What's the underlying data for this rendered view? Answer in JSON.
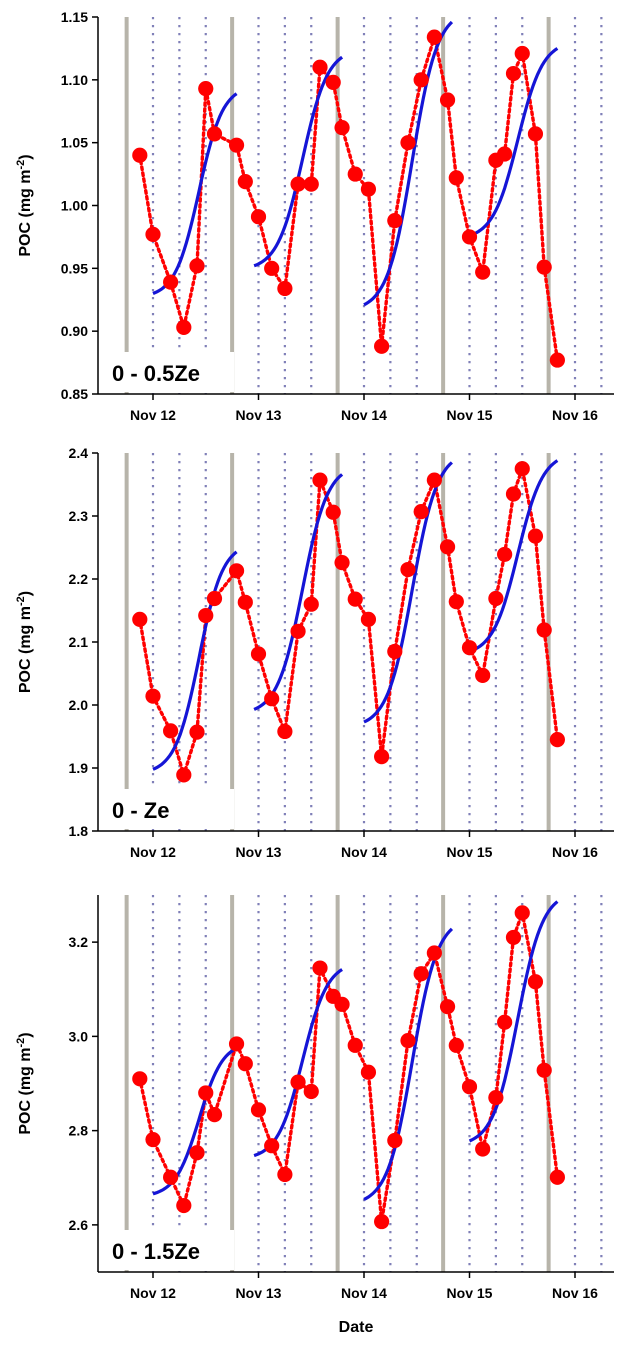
{
  "figure": {
    "xlabel": "Date",
    "x_tick_labels": [
      "Nov 12",
      "Nov 13",
      "Nov 14",
      "Nov 15",
      "Nov 16"
    ]
  },
  "chart_data": [
    {
      "type": "scatter",
      "panel_label": "0 - 0.5Ze",
      "ylabel": "POC (mg m",
      "ylabel_sup": "-2",
      "ylabel_end": ")",
      "ylim": [
        0.85,
        1.15
      ],
      "y_ticks": [
        "0.85",
        "0.90",
        "0.95",
        "1.00",
        "1.05",
        "1.10",
        "1.15"
      ],
      "xlim": [
        11.5,
        16.45
      ],
      "grid": "vertical",
      "series": [
        {
          "type": "points",
          "color": "#ff0000",
          "x": [
            11.875,
            12.0,
            12.167,
            12.292,
            12.417,
            12.5,
            12.583,
            12.792,
            12.875,
            13.0,
            13.125,
            13.25,
            13.375,
            13.5,
            13.583,
            13.708,
            13.792,
            13.917,
            14.042,
            14.167,
            14.292,
            14.417,
            14.542,
            14.667,
            14.792,
            14.875,
            15.0,
            15.125,
            15.25,
            15.333,
            15.417,
            15.5,
            15.625,
            15.708,
            15.833,
            15.917,
            16.042,
            16.167,
            16.292
          ],
          "y": [
            1.04,
            0.977,
            0.939,
            0.903,
            0.952,
            1.093,
            1.057,
            1.048,
            1.019,
            0.991,
            0.95,
            0.934,
            1.017,
            1.017,
            1.11,
            1.098,
            1.062,
            1.025,
            1.013,
            0.888,
            0.988,
            1.05,
            1.1,
            1.134,
            1.084,
            1.022,
            0.975,
            0.947,
            1.036,
            1.041,
            1.105,
            1.121,
            1.057,
            0.951,
            0.877,
            null,
            null,
            null,
            null
          ]
        },
        {
          "type": "fit",
          "color": "#1515d6",
          "segments": [
            {
              "x0": 12.0,
              "x1": 12.792,
              "y0": 0.93,
              "y1": 1.089
            },
            {
              "x0": 12.958,
              "x1": 13.792,
              "y0": 0.952,
              "y1": 1.118
            },
            {
              "x0": 14.0,
              "x1": 14.833,
              "y0": 0.921,
              "y1": 1.146
            },
            {
              "x0": 15.0,
              "x1": 15.833,
              "y0": 0.976,
              "y1": 1.125
            }
          ]
        }
      ]
    },
    {
      "type": "scatter",
      "panel_label": "0 - Ze",
      "ylabel": "POC (mg m",
      "ylabel_sup": "-2",
      "ylabel_end": ")",
      "ylim": [
        1.8,
        2.4
      ],
      "y_ticks": [
        "1.8",
        "1.9",
        "2.0",
        "2.1",
        "2.2",
        "2.3",
        "2.4"
      ],
      "xlim": [
        11.5,
        16.45
      ],
      "grid": "vertical",
      "series": [
        {
          "type": "points",
          "color": "#ff0000",
          "x": [
            11.875,
            12.0,
            12.167,
            12.292,
            12.417,
            12.5,
            12.583,
            12.792,
            12.875,
            13.0,
            13.125,
            13.25,
            13.375,
            13.5,
            13.583,
            13.708,
            13.792,
            13.917,
            14.042,
            14.167,
            14.292,
            14.417,
            14.542,
            14.667,
            14.792,
            14.875,
            15.0,
            15.125,
            15.25,
            15.333,
            15.417,
            15.5,
            15.625,
            15.708,
            15.833,
            15.917,
            16.042,
            16.167,
            16.292
          ],
          "y": [
            2.136,
            2.014,
            1.959,
            1.889,
            1.957,
            2.142,
            2.169,
            2.213,
            2.163,
            2.081,
            2.01,
            1.958,
            2.117,
            2.16,
            2.357,
            2.306,
            2.226,
            2.168,
            2.136,
            1.918,
            2.085,
            2.215,
            2.307,
            2.357,
            2.251,
            2.164,
            2.091,
            2.047,
            2.169,
            2.239,
            2.335,
            2.375,
            2.268,
            2.119,
            1.945,
            null,
            null,
            null,
            null
          ]
        },
        {
          "type": "fit",
          "color": "#1515d6",
          "segments": [
            {
              "x0": 12.0,
              "x1": 12.792,
              "y0": 1.898,
              "y1": 2.243
            },
            {
              "x0": 12.958,
              "x1": 13.792,
              "y0": 1.993,
              "y1": 2.366
            },
            {
              "x0": 14.0,
              "x1": 14.833,
              "y0": 1.973,
              "y1": 2.385
            },
            {
              "x0": 15.0,
              "x1": 15.833,
              "y0": 2.085,
              "y1": 2.388
            }
          ]
        }
      ]
    },
    {
      "type": "scatter",
      "panel_label": "0 - 1.5Ze",
      "ylabel": "POC (mg m",
      "ylabel_sup": "-2",
      "ylabel_end": ")",
      "ylim": [
        2.5,
        3.3
      ],
      "y_ticks": [
        "2.6",
        "2.8",
        "3.0",
        "3.2"
      ],
      "y_tick_values": [
        2.6,
        2.8,
        3.0,
        3.2
      ],
      "xlim": [
        11.5,
        16.45
      ],
      "grid": "vertical",
      "series": [
        {
          "type": "points",
          "color": "#ff0000",
          "x": [
            11.875,
            12.0,
            12.167,
            12.292,
            12.417,
            12.5,
            12.583,
            12.792,
            12.875,
            13.0,
            13.125,
            13.25,
            13.375,
            13.5,
            13.583,
            13.708,
            13.792,
            13.917,
            14.042,
            14.167,
            14.292,
            14.417,
            14.542,
            14.667,
            14.792,
            14.875,
            15.0,
            15.125,
            15.25,
            15.333,
            15.417,
            15.5,
            15.625,
            15.708,
            15.833,
            15.917,
            16.042,
            16.167,
            16.292
          ],
          "y": [
            2.91,
            2.781,
            2.701,
            2.641,
            2.753,
            2.88,
            2.834,
            2.984,
            2.942,
            2.844,
            2.768,
            2.707,
            2.903,
            2.883,
            3.145,
            3.085,
            3.068,
            2.981,
            2.924,
            2.607,
            2.779,
            2.991,
            3.133,
            3.177,
            3.063,
            2.981,
            2.893,
            2.761,
            2.87,
            3.03,
            3.21,
            3.262,
            3.116,
            2.928,
            2.701,
            null,
            null,
            null,
            null
          ]
        },
        {
          "type": "fit",
          "color": "#1515d6",
          "segments": [
            {
              "x0": 12.0,
              "x1": 12.792,
              "y0": 2.666,
              "y1": 2.975
            },
            {
              "x0": 12.958,
              "x1": 13.792,
              "y0": 2.747,
              "y1": 3.142
            },
            {
              "x0": 14.0,
              "x1": 14.833,
              "y0": 2.654,
              "y1": 3.228
            },
            {
              "x0": 15.0,
              "x1": 15.833,
              "y0": 2.778,
              "y1": 3.286
            }
          ]
        }
      ]
    }
  ]
}
